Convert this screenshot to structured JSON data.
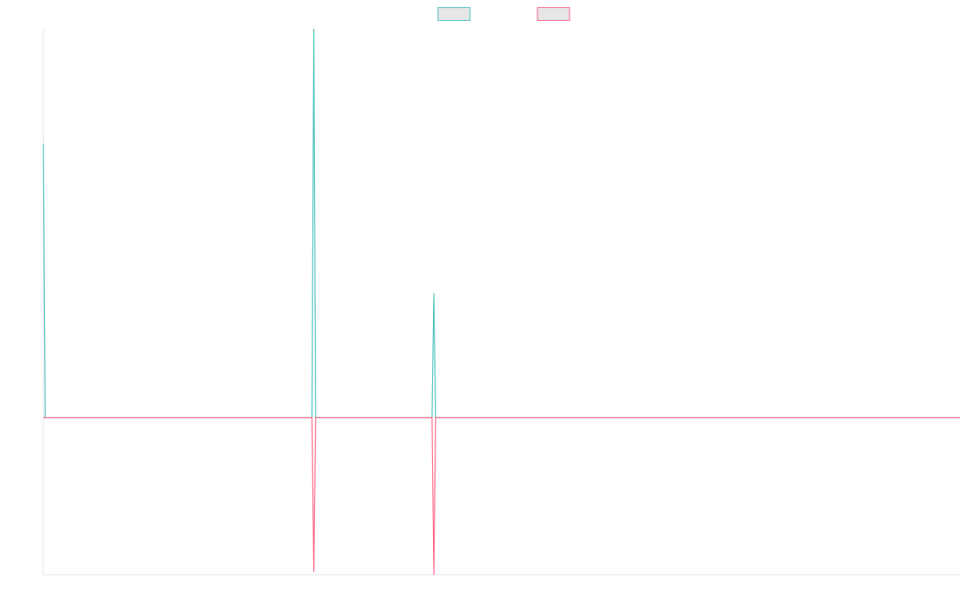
{
  "chart_data": {
    "type": "line",
    "title": "",
    "xlabel": "",
    "ylabel": "",
    "legend_position": "top-center",
    "grid": false,
    "ylim": [
      -12.6,
      31.2
    ],
    "xlim": [
      0,
      1
    ],
    "series": [
      {
        "color": "#4bc0c0",
        "legend_fill": "#e6e6e6",
        "points": [
          {
            "x": 0.0,
            "y": 22.0
          },
          {
            "x": 0.002,
            "y": 0.0
          },
          {
            "x": 0.293,
            "y": 0.0
          },
          {
            "x": 0.295,
            "y": 31.2
          },
          {
            "x": 0.297,
            "y": 0.0
          },
          {
            "x": 0.424,
            "y": 0.0
          },
          {
            "x": 0.426,
            "y": 10.0
          },
          {
            "x": 0.428,
            "y": 0.0
          },
          {
            "x": 1.0,
            "y": 0.0
          }
        ]
      },
      {
        "color": "#ff6384",
        "legend_fill": "#e6e6e6",
        "points": [
          {
            "x": 0.0,
            "y": 0.0
          },
          {
            "x": 0.293,
            "y": 0.0
          },
          {
            "x": 0.295,
            "y": -12.4
          },
          {
            "x": 0.297,
            "y": 0.0
          },
          {
            "x": 0.424,
            "y": 0.0
          },
          {
            "x": 0.426,
            "y": -12.6
          },
          {
            "x": 0.428,
            "y": 0.0
          },
          {
            "x": 1.0,
            "y": 0.0
          }
        ]
      }
    ]
  }
}
